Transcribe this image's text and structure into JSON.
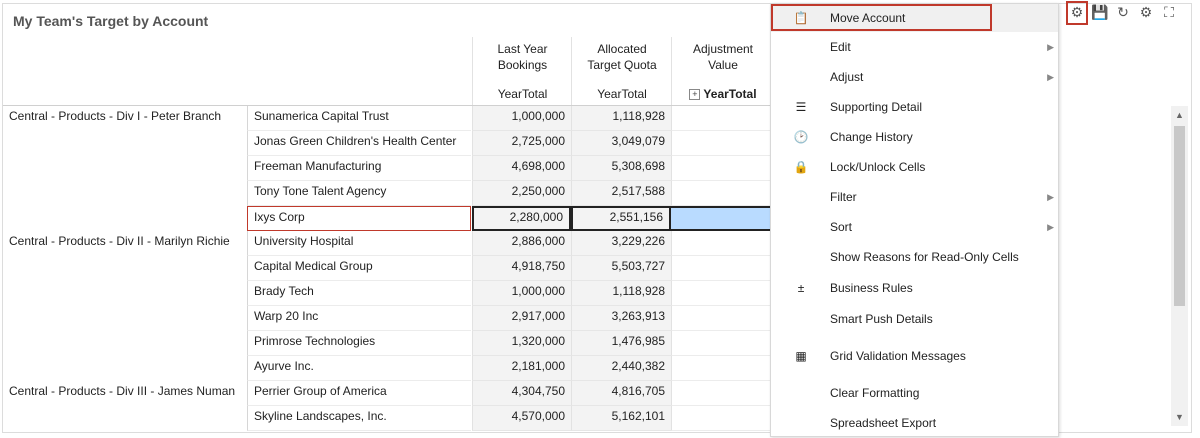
{
  "title": "My Team's Target by Account",
  "columns": [
    {
      "name": "Last Year Bookings",
      "sub": "YearTotal"
    },
    {
      "name": "Allocated Target Quota",
      "sub": "YearTotal"
    },
    {
      "name": "Adjustment Value",
      "sub": "YearTotal"
    }
  ],
  "rows": [
    {
      "division": "Central - Products - Div I - Peter Branch",
      "account": "Sunamerica Capital Trust",
      "bookings": "1,000,000",
      "quota": "1,118,928"
    },
    {
      "division": "",
      "account": "Jonas Green Children's Health Center",
      "bookings": "2,725,000",
      "quota": "3,049,079"
    },
    {
      "division": "",
      "account": "Freeman Manufacturing",
      "bookings": "4,698,000",
      "quota": "5,308,698"
    },
    {
      "division": "",
      "account": "Tony Tone Talent Agency",
      "bookings": "2,250,000",
      "quota": "2,517,588"
    },
    {
      "division": "",
      "account": "Ixys Corp",
      "bookings": "2,280,000",
      "quota": "2,551,156",
      "selected": true
    },
    {
      "division": "Central - Products - Div II - Marilyn Richie",
      "account": "University Hospital",
      "bookings": "2,886,000",
      "quota": "3,229,226"
    },
    {
      "division": "",
      "account": "Capital Medical Group",
      "bookings": "4,918,750",
      "quota": "5,503,727"
    },
    {
      "division": "",
      "account": "Brady Tech",
      "bookings": "1,000,000",
      "quota": "1,118,928"
    },
    {
      "division": "",
      "account": "Warp 20 Inc",
      "bookings": "2,917,000",
      "quota": "3,263,913"
    },
    {
      "division": "",
      "account": "Primrose Technologies",
      "bookings": "1,320,000",
      "quota": "1,476,985"
    },
    {
      "division": "",
      "account": "Ayurve Inc.",
      "bookings": "2,181,000",
      "quota": "2,440,382"
    },
    {
      "division": "Central - Products - Div III - James Numan",
      "account": "Perrier Group of America",
      "bookings": "4,304,750",
      "quota": "4,816,705"
    },
    {
      "division": "",
      "account": "Skyline Landscapes, Inc.",
      "bookings": "4,570,000",
      "quota": "5,162,101"
    }
  ],
  "menu": [
    {
      "label": "Move Account",
      "icon": "move-account-icon",
      "glyph": "📋",
      "highlighted": true
    },
    {
      "label": "Edit",
      "submenu": true
    },
    {
      "label": "Adjust",
      "submenu": true
    },
    {
      "label": "Supporting Detail",
      "icon": "supporting-detail-icon",
      "glyph": "☰"
    },
    {
      "label": "Change History",
      "icon": "change-history-icon",
      "glyph": "🕑"
    },
    {
      "label": "Lock/Unlock Cells",
      "icon": "lock-icon",
      "glyph": "🔒"
    },
    {
      "label": "Filter",
      "submenu": true
    },
    {
      "label": "Sort",
      "submenu": true
    },
    {
      "label": "Show Reasons for Read-Only Cells"
    },
    {
      "label": "Business Rules",
      "icon": "calculator-icon",
      "glyph": "±"
    },
    {
      "label": "Smart Push Details"
    },
    {
      "label": "Grid Validation Messages",
      "icon": "grid-validation-icon",
      "glyph": "▦"
    },
    {
      "label": "Clear Formatting"
    },
    {
      "label": "Spreadsheet Export"
    }
  ],
  "toolbar": [
    {
      "name": "actions-gear-icon",
      "glyph": "⚙",
      "highlighted": true
    },
    {
      "name": "save-icon",
      "glyph": "💾"
    },
    {
      "name": "refresh-icon",
      "glyph": "↻"
    },
    {
      "name": "settings-icon",
      "glyph": "⚙"
    },
    {
      "name": "maximize-icon",
      "glyph": "⛶"
    }
  ],
  "colors": {
    "highlight_border": "#c0392b",
    "selected_cell": "#b9dbff"
  }
}
